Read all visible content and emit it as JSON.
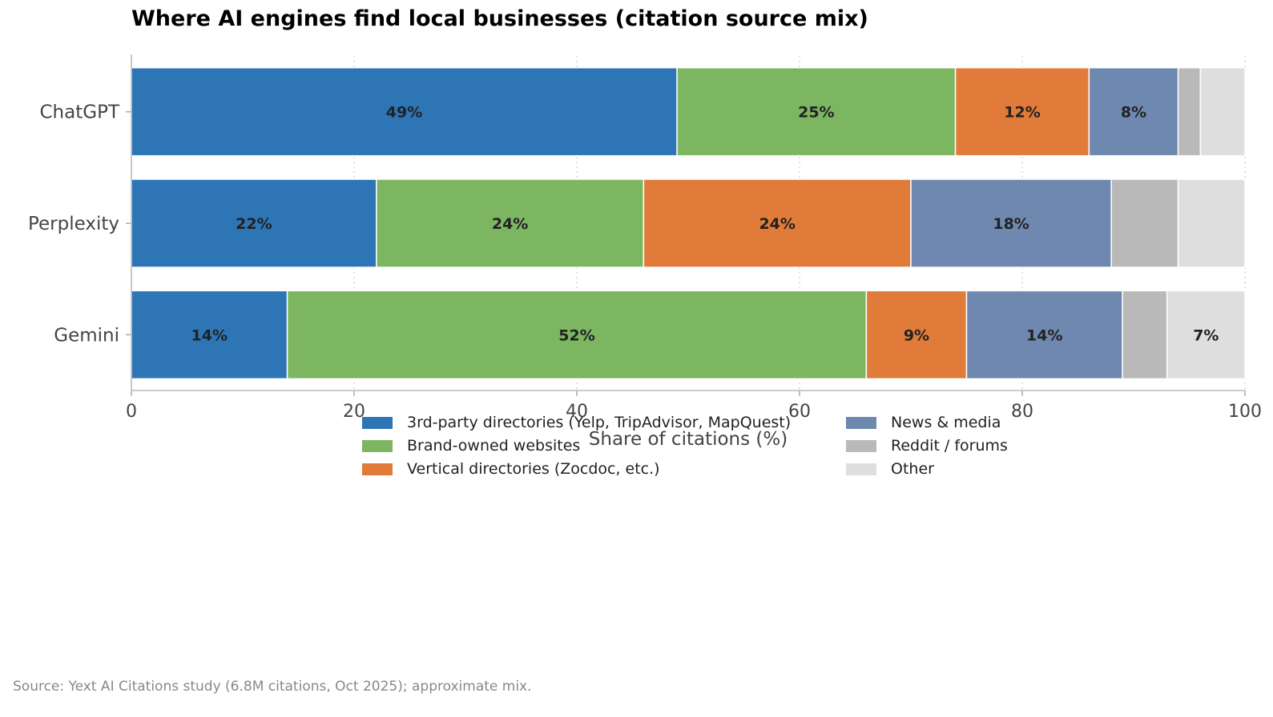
{
  "title": "Where AI engines find local businesses (citation source mix)",
  "source_note": "Source: Yext AI Citations study (6.8M citations, Oct 2025); approximate mix.",
  "chart_data": {
    "type": "bar",
    "orientation": "horizontal",
    "stacked": true,
    "title": "Where AI engines find local businesses (citation source mix)",
    "xlabel": "Share of citations (%)",
    "ylabel": "",
    "xlim": [
      0,
      100
    ],
    "xticks": [
      "0",
      "20",
      "40",
      "60",
      "80",
      "100"
    ],
    "grid": "x, dotted",
    "legend_position": "bottom",
    "categories": [
      "ChatGPT",
      "Perplexity",
      "Gemini"
    ],
    "series": [
      {
        "name": "3rd-party directories (Yelp, TripAdvisor, MapQuest)",
        "color": "#2e75b6",
        "values": [
          49,
          22,
          14
        ],
        "labels": [
          "49%",
          "22%",
          "14%"
        ]
      },
      {
        "name": "Brand-owned websites",
        "color": "#7cb661",
        "values": [
          25,
          24,
          52
        ],
        "labels": [
          "25%",
          "24%",
          "52%"
        ]
      },
      {
        "name": "Vertical directories (Zocdoc, etc.)",
        "color": "#e07b39",
        "values": [
          12,
          24,
          9
        ],
        "labels": [
          "12%",
          "24%",
          "9%"
        ]
      },
      {
        "name": "News & media",
        "color": "#6e88b0",
        "values": [
          8,
          18,
          14
        ],
        "labels": [
          "8%",
          "18%",
          "14%"
        ]
      },
      {
        "name": "Reddit / forums",
        "color": "#b9b9b9",
        "values": [
          2,
          6,
          4
        ],
        "labels": [
          "",
          "",
          ""
        ]
      },
      {
        "name": "Other",
        "color": "#dedede",
        "values": [
          4,
          6,
          7
        ],
        "labels": [
          "",
          "",
          "7%"
        ]
      }
    ]
  }
}
